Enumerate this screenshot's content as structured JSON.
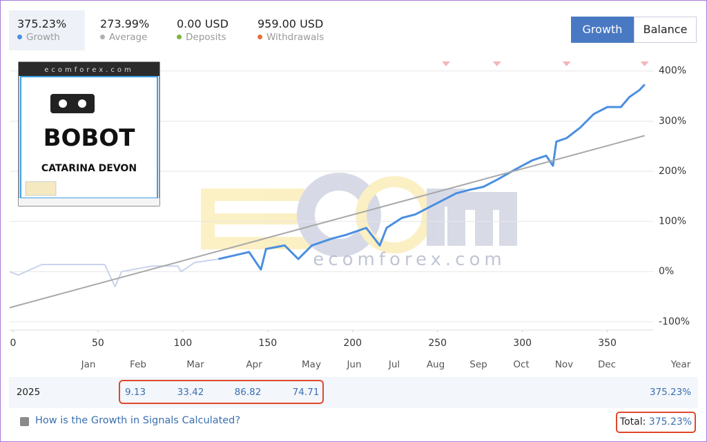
{
  "stats": [
    {
      "value": "375.23%",
      "label": "Growth",
      "color": "#4a90e2"
    },
    {
      "value": "273.99%",
      "label": "Average",
      "color": "#b0b0b0"
    },
    {
      "value": "0.00 USD",
      "label": "Deposits",
      "color": "#7cb342"
    },
    {
      "value": "959.00 USD",
      "label": "Withdrawals",
      "color": "#e8703a"
    }
  ],
  "tabs": [
    "Growth",
    "Balance"
  ],
  "logo": {
    "site": "ecomforex.com",
    "name": "BOBOT",
    "owner": "CATARINA DEVON"
  },
  "watermark": "ecomforex.com",
  "chart_data": {
    "type": "line",
    "xlim": [
      -2,
      377
    ],
    "ylim": [
      -114,
      423
    ],
    "xticks": [
      0,
      50,
      100,
      150,
      200,
      250,
      300,
      350
    ],
    "yticks": [
      {
        "value": 400,
        "label": "400%"
      },
      {
        "value": 300,
        "label": "300%"
      },
      {
        "value": 200,
        "label": "200%"
      },
      {
        "value": 100,
        "label": "100%"
      },
      {
        "value": 0,
        "label": "0%"
      },
      {
        "value": -100,
        "label": "-100%"
      }
    ],
    "grid": true,
    "series": [
      {
        "color": "#c9d2ec",
        "line_width": 2,
        "x": [
          -2,
          3,
          17,
          34,
          54,
          60,
          64,
          82,
          97,
          99,
          107,
          121
        ],
        "values": [
          0,
          -7,
          14,
          14,
          14,
          -30,
          0,
          11,
          11,
          0,
          18,
          25
        ]
      },
      {
        "color": "#4a8fe0",
        "line_width": 3,
        "x": [
          121,
          139,
          146,
          149,
          160,
          168,
          176,
          188,
          196,
          202,
          208,
          216,
          220,
          229,
          237,
          245,
          253,
          261,
          269,
          277,
          285,
          296,
          306,
          314,
          318,
          320,
          326,
          334,
          342,
          350,
          358,
          363,
          369,
          372
        ],
        "values": [
          25,
          39,
          4,
          45,
          52,
          25,
          52,
          66,
          73,
          80,
          87,
          52,
          87,
          107,
          114,
          128,
          142,
          156,
          163,
          169,
          183,
          204,
          222,
          231,
          211,
          259,
          266,
          287,
          314,
          328,
          328,
          348,
          362,
          373
        ]
      },
      {
        "color": "#a8a8a8",
        "line_width": 2,
        "x": [
          -2,
          372
        ],
        "values": [
          -72,
          271
        ]
      }
    ],
    "markers": {
      "color": "#f4b6b6",
      "x": [
        255,
        285,
        326,
        372
      ]
    }
  },
  "monthly": {
    "headers": [
      "Jan",
      "Feb",
      "Mar",
      "Apr",
      "May",
      "Jun",
      "Jul",
      "Aug",
      "Sep",
      "Oct",
      "Nov",
      "Dec",
      "Year"
    ],
    "year": "2025",
    "values": [
      null,
      9.13,
      33.42,
      86.82,
      74.71,
      null,
      null,
      null,
      null,
      null,
      null,
      null,
      "375.23%"
    ]
  },
  "footer": {
    "link": "How is the Growth in Signals Calculated?",
    "total_label": "Total:",
    "total_value": "375.23%"
  }
}
